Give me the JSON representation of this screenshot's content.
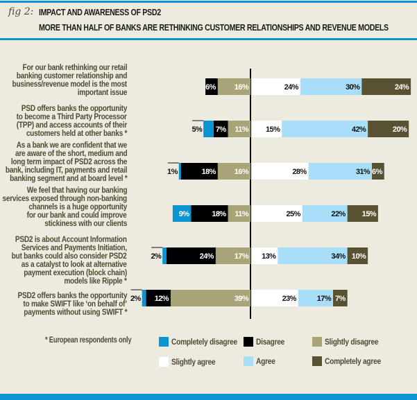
{
  "header": {
    "fig_label": "fig 2:",
    "title": "IMPACT AND AWARENESS OF PSD2",
    "subtitle": "MORE THAN HALF OF BANKS ARE RETHINKING CUSTOMER RELATIONSHIPS AND REVENUE MODELS"
  },
  "footnote": "* European respondents only",
  "colors": {
    "completely_disagree": "#0a94d1",
    "disagree": "#000000",
    "slightly_disagree": "#a9a478",
    "slightly_agree": "#ffffff",
    "agree": "#a8def7",
    "completely_agree": "#585232",
    "rule": "#0a94d1",
    "background": "#edeadf"
  },
  "chart_data": {
    "type": "bar",
    "subtype": "diverging-stacked-horizontal",
    "title": "IMPACT AND AWARENESS OF PSD2",
    "subtitle": "MORE THAN HALF OF BANKS ARE RETHINKING CUSTOMER RELATIONSHIPS AND REVENUE MODELS",
    "unit": "%",
    "legend_position": "bottom",
    "grid": false,
    "categories": [
      [
        "For our bank rethinking our retail",
        "banking customer relationship and",
        "business/revenue model is the most",
        "important issue"
      ],
      [
        "PSD offers banks the opportunity",
        "to become a Third Party Processor",
        "(TPP) and access accounts of their",
        "customers held at other banks *"
      ],
      [
        "As a bank we are confident that we",
        "are aware of the short, medium and",
        "long term impact of PSD2 across the",
        "bank, including IT, payments and retail",
        "banking segment and at board level *"
      ],
      [
        "We feel that having our banking",
        "services exposed through non-banking",
        "channels is a huge opportunity",
        "for our bank and could improve",
        "stickiness with our clients"
      ],
      [
        "PSD2 is about Account Information",
        "Services and Payments Initiation,",
        "but banks could also consider PSD2",
        "as a catalyst to look at alternative",
        "payment execution (block chain)",
        "models like Ripple *"
      ],
      [
        "PSD2 offers banks the opportunity",
        "to make SWIFT like ‘on behalf of’",
        "payments without using SWIFT *"
      ]
    ],
    "series": [
      {
        "key": "completely_disagree",
        "name": "Completely disagree",
        "side": "negative",
        "values": [
          0,
          5,
          1,
          9,
          2,
          2
        ]
      },
      {
        "key": "disagree",
        "name": "Disagree",
        "side": "negative",
        "values": [
          6,
          7,
          18,
          18,
          24,
          12
        ]
      },
      {
        "key": "slightly_disagree",
        "name": "Slightly disagree",
        "side": "negative",
        "values": [
          16,
          11,
          16,
          11,
          17,
          39
        ]
      },
      {
        "key": "slightly_agree",
        "name": "Slightly agree",
        "side": "positive",
        "values": [
          24,
          15,
          28,
          25,
          13,
          23
        ]
      },
      {
        "key": "agree",
        "name": "Agree",
        "side": "positive",
        "values": [
          30,
          42,
          31,
          22,
          34,
          17
        ]
      },
      {
        "key": "completely_agree",
        "name": "Completely agree",
        "side": "positive",
        "values": [
          24,
          20,
          6,
          15,
          10,
          7
        ]
      }
    ],
    "legend": [
      {
        "key": "completely_disagree",
        "label": "Completely disagree"
      },
      {
        "key": "disagree",
        "label": "Disagree"
      },
      {
        "key": "slightly_disagree",
        "label": "Slightly disagree"
      },
      {
        "key": "slightly_agree",
        "label": "Slightly agree"
      },
      {
        "key": "agree",
        "label": "Agree"
      },
      {
        "key": "completely_agree",
        "label": "Completely agree"
      }
    ]
  }
}
